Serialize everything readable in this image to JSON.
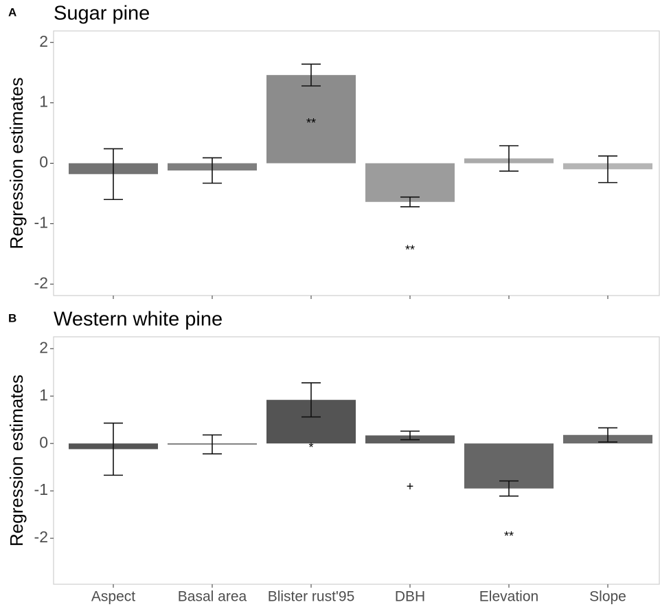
{
  "chart_data": [
    {
      "type": "bar",
      "panel": "A",
      "title": "Sugar pine",
      "y_label": "Regression estimates",
      "values": [
        -0.18,
        -0.12,
        1.46,
        -0.64,
        0.08,
        -0.1
      ],
      "errors": [
        0.42,
        0.21,
        0.18,
        0.08,
        0.21,
        0.22
      ],
      "colors": [
        "#737373",
        "#7f7f7f",
        "#8c8c8c",
        "#9c9c9c",
        "#aaaaaa",
        "#b5b5b5"
      ],
      "ylim": [
        -2.19,
        2.19
      ],
      "yticks": [
        -2,
        -1,
        0,
        1,
        2
      ],
      "annotations": [
        {
          "category": 2,
          "y": 0.65,
          "text": "**"
        },
        {
          "category": 3,
          "y": -1.45,
          "text": "**"
        }
      ]
    },
    {
      "type": "bar",
      "panel": "B",
      "title": "Western white pine",
      "y_label": "Regression estimates",
      "categories": [
        "Aspect",
        "Basal area",
        "Blister rust'95",
        "DBH",
        "Elevation",
        "Slope"
      ],
      "values": [
        -0.12,
        -0.02,
        0.92,
        0.17,
        -0.95,
        0.18
      ],
      "errors": [
        0.55,
        0.2,
        0.36,
        0.09,
        0.16,
        0.15
      ],
      "colors": [
        "#555555",
        "#5a5a5a",
        "#545454",
        "#5e5e5e",
        "#666666",
        "#6d6d6d"
      ],
      "ylim": [
        -2.97,
        2.25
      ],
      "yticks": [
        -2,
        -1,
        0,
        1,
        2
      ],
      "annotations": [
        {
          "category": 2,
          "y": -0.1,
          "text": "*"
        },
        {
          "category": 3,
          "y": -0.92,
          "text": "+"
        },
        {
          "category": 4,
          "y": -1.97,
          "text": "**"
        }
      ]
    }
  ]
}
